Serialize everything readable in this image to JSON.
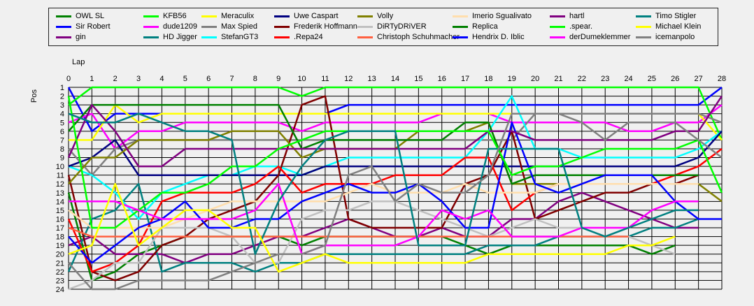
{
  "chart_data": {
    "type": "line",
    "xlabel": "Lap",
    "ylabel": "Pos",
    "x_ticks": [
      0,
      1,
      2,
      3,
      4,
      5,
      6,
      7,
      8,
      9,
      10,
      11,
      12,
      13,
      14,
      15,
      16,
      17,
      18,
      19,
      20,
      21,
      22,
      23,
      24,
      25,
      26,
      27,
      28
    ],
    "y_ticks": [
      1,
      2,
      3,
      4,
      5,
      6,
      7,
      8,
      9,
      10,
      11,
      12,
      13,
      14,
      15,
      16,
      17,
      18,
      19,
      20,
      21,
      22,
      23,
      24
    ],
    "xlim": [
      0,
      28
    ],
    "ylim": [
      24,
      1
    ],
    "y_inverted": true,
    "grid": true,
    "legend_position": "top",
    "series": [
      {
        "name": "OWL SL",
        "color": "#008000",
        "values": [
          13,
          23,
          22,
          20,
          19,
          18,
          18,
          18,
          18,
          18,
          19,
          18,
          18,
          18,
          18,
          18,
          18,
          19,
          20,
          19,
          19,
          19,
          19,
          19,
          19,
          20,
          19,
          null,
          null
        ]
      },
      {
        "name": "Sir Robert",
        "color": "#0000ff",
        "values": [
          1,
          6,
          4,
          4,
          4,
          4,
          4,
          4,
          4,
          4,
          4,
          4,
          3,
          3,
          3,
          3,
          3,
          3,
          3,
          3,
          3,
          3,
          3,
          3,
          3,
          3,
          3,
          3,
          1
        ]
      },
      {
        "name": "gin",
        "color": "#800080",
        "values": [
          19,
          18,
          20,
          20,
          20,
          21,
          20,
          20,
          19,
          18,
          18,
          17,
          16,
          17,
          18,
          18,
          17,
          18,
          18,
          16,
          16,
          14,
          13,
          14,
          15,
          16,
          17,
          17,
          null
        ]
      },
      {
        "name": "KFB56",
        "color": "#00ff00",
        "values": [
          3,
          1,
          1,
          1,
          1,
          1,
          1,
          1,
          1,
          1,
          2,
          1,
          1,
          1,
          1,
          1,
          1,
          1,
          1,
          1,
          1,
          1,
          1,
          1,
          1,
          1,
          1,
          1,
          7
        ]
      },
      {
        "name": "dude1209",
        "color": "#ff00ff",
        "values": [
          5,
          4,
          8,
          6,
          6,
          5,
          5,
          5,
          5,
          5,
          6,
          5,
          5,
          5,
          5,
          5,
          4,
          4,
          4,
          5,
          5,
          5,
          5,
          5,
          6,
          6,
          5,
          5,
          3
        ]
      },
      {
        "name": "HD Jigger",
        "color": "#008080",
        "values": [
          22,
          16,
          15,
          12,
          22,
          21,
          21,
          21,
          22,
          21,
          21,
          20,
          20,
          20,
          20,
          20,
          20,
          20,
          19,
          19,
          19,
          18,
          18,
          18,
          18,
          17,
          17,
          16,
          null
        ]
      },
      {
        "name": "Meraculix",
        "color": "#ffff00",
        "values": [
          7,
          7,
          3,
          5,
          4,
          4,
          4,
          4,
          4,
          4,
          4,
          4,
          4,
          4,
          4,
          4,
          4,
          4,
          4,
          4,
          4,
          4,
          4,
          4,
          4,
          4,
          4,
          4,
          7
        ]
      },
      {
        "name": "Max Spied",
        "color": "#808080",
        "values": [
          8,
          11,
          8,
          7,
          7,
          7,
          7,
          7,
          7,
          7,
          7,
          7,
          7,
          7,
          7,
          7,
          7,
          7,
          7,
          7,
          4,
          4,
          4,
          4,
          4,
          4,
          4,
          4,
          5
        ]
      },
      {
        "name": "StefanGT3",
        "color": "#00ffff",
        "values": [
          10,
          11,
          13,
          16,
          13,
          12,
          11,
          11,
          10,
          10,
          11,
          10,
          9,
          9,
          9,
          9,
          9,
          9,
          6,
          2,
          8,
          8,
          9,
          9,
          9,
          9,
          9,
          8,
          6
        ]
      },
      {
        "name": "Uwe Caspart",
        "color": "#000080",
        "values": [
          10,
          9,
          7,
          11,
          11,
          11,
          11,
          11,
          11,
          11,
          11,
          10,
          10,
          10,
          10,
          10,
          10,
          10,
          10,
          10,
          10,
          10,
          10,
          10,
          10,
          10,
          10,
          9,
          6
        ]
      },
      {
        "name": "Frederik Hoffmann",
        "color": "#800000",
        "values": [
          11,
          22,
          23,
          22,
          19,
          18,
          16,
          15,
          14,
          11,
          3,
          2,
          16,
          17,
          17,
          17,
          17,
          12,
          11,
          6,
          16,
          15,
          14,
          13,
          13,
          12,
          12,
          11,
          null
        ]
      },
      {
        "name": ".Repa24",
        "color": "#ff0000",
        "values": [
          16,
          22,
          21,
          19,
          14,
          13,
          13,
          13,
          12,
          10,
          13,
          12,
          12,
          12,
          11,
          11,
          11,
          9,
          9,
          15,
          13,
          12,
          12,
          12,
          12,
          12,
          11,
          10,
          8
        ]
      },
      {
        "name": "Volly",
        "color": "#808000",
        "values": [
          12,
          9,
          9,
          7,
          7,
          7,
          7,
          6,
          6,
          6,
          9,
          8,
          8,
          8,
          8,
          6,
          6,
          6,
          5,
          12,
          12,
          12,
          12,
          12,
          12,
          12,
          12,
          12,
          14
        ]
      },
      {
        "name": "DiRTyDRiVER",
        "color": "#c0c0c0",
        "values": [
          24,
          23,
          21,
          21,
          17,
          17,
          17,
          18,
          21,
          21,
          16,
          15,
          15,
          14,
          14,
          15,
          16,
          17,
          18,
          17,
          16,
          17,
          17,
          18,
          18,
          19,
          20,
          null,
          null
        ]
      },
      {
        "name": "Christoph Schuhmacher",
        "color": "#ff6040",
        "values": [
          17,
          18,
          18,
          18,
          18,
          18,
          18,
          18,
          18,
          18,
          18,
          18,
          18,
          18,
          18,
          18,
          18,
          18,
          18,
          18,
          18,
          18,
          18,
          18,
          18,
          null,
          null,
          null,
          null
        ]
      },
      {
        "name": "Imerio Sgualivato",
        "color": "#ffdead",
        "values": [
          15,
          17,
          17,
          17,
          17,
          16,
          15,
          14,
          14,
          14,
          14,
          14,
          13,
          12,
          13,
          13,
          13,
          12,
          13,
          13,
          13,
          12,
          12,
          12,
          12,
          12,
          12,
          12,
          null
        ]
      },
      {
        "name": "Replica",
        "color": "#008000",
        "values": [
          6,
          3,
          3,
          3,
          3,
          3,
          3,
          3,
          3,
          3,
          8,
          7,
          7,
          7,
          7,
          7,
          7,
          5,
          5,
          12,
          11,
          11,
          11,
          11,
          11,
          11,
          11,
          11,
          null
        ]
      },
      {
        "name": "Hendrix D. Iblic",
        "color": "#0000ff",
        "values": [
          18,
          21,
          19,
          17,
          16,
          14,
          17,
          17,
          16,
          16,
          14,
          13,
          12,
          13,
          13,
          12,
          14,
          17,
          17,
          5,
          12,
          13,
          12,
          11,
          11,
          11,
          14,
          16,
          16
        ]
      },
      {
        "name": "hartl",
        "color": "#800080",
        "values": [
          9,
          3,
          6,
          10,
          10,
          8,
          8,
          8,
          8,
          8,
          8,
          8,
          8,
          8,
          8,
          8,
          8,
          8,
          6,
          6,
          7,
          7,
          7,
          7,
          7,
          7,
          6,
          6,
          2
        ]
      },
      {
        "name": ".spear.",
        "color": "#00ff00",
        "values": [
          2,
          17,
          17,
          15,
          13,
          13,
          12,
          10,
          10,
          8,
          7,
          6,
          6,
          6,
          6,
          6,
          6,
          6,
          6,
          11,
          10,
          10,
          9,
          8,
          8,
          8,
          8,
          7,
          13
        ]
      },
      {
        "name": "derDumeklemmer",
        "color": "#ff00ff",
        "values": [
          14,
          14,
          14,
          15,
          16,
          16,
          16,
          16,
          15,
          12,
          20,
          19,
          19,
          19,
          19,
          18,
          15,
          16,
          15,
          18,
          18,
          18,
          17,
          17,
          17,
          15,
          14,
          14,
          null
        ]
      },
      {
        "name": "Timo Stigler",
        "color": "#008080",
        "values": [
          4,
          5,
          5,
          4,
          5,
          6,
          6,
          7,
          20,
          14,
          10,
          7,
          6,
          6,
          6,
          19,
          19,
          19,
          8,
          8,
          8,
          8,
          17,
          18,
          17,
          16,
          15,
          15,
          null
        ]
      },
      {
        "name": "Michael Klein",
        "color": "#ffff00",
        "values": [
          20,
          19,
          12,
          19,
          17,
          15,
          15,
          17,
          17,
          22,
          21,
          20,
          21,
          21,
          21,
          21,
          21,
          21,
          20,
          20,
          20,
          20,
          20,
          20,
          19,
          19,
          18,
          null,
          null
        ]
      },
      {
        "name": "icemanpolo",
        "color": "#808080",
        "values": [
          21,
          24,
          24,
          23,
          23,
          23,
          23,
          22,
          21,
          20,
          20,
          19,
          11,
          10,
          14,
          12,
          13,
          13,
          11,
          4,
          4,
          4,
          5,
          7,
          5,
          5,
          5,
          7,
          9
        ]
      }
    ]
  }
}
